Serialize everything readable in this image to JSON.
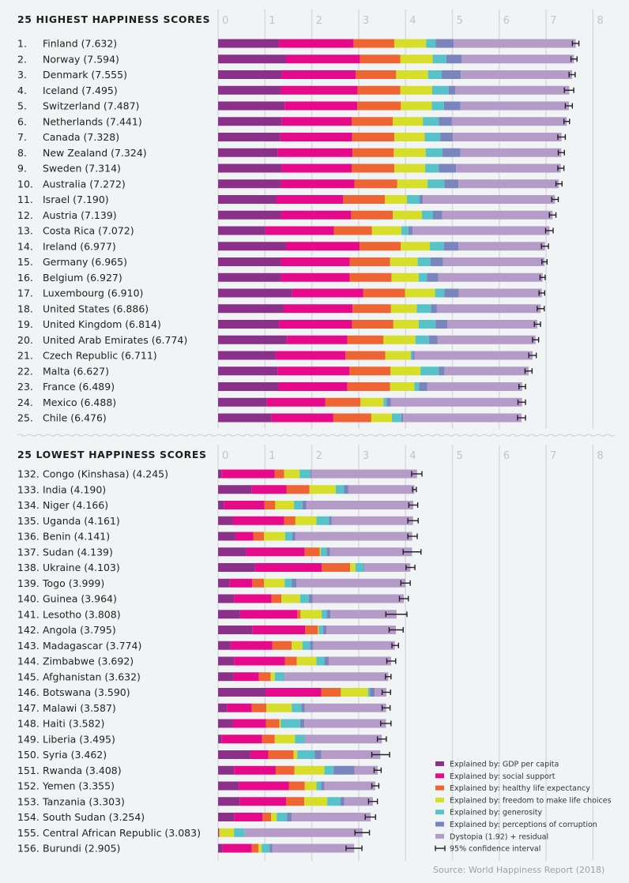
{
  "chart_data": {
    "type": "bar",
    "orientation": "horizontal",
    "stacked": true,
    "xlim": [
      0,
      8
    ],
    "x_ticks": [
      "0",
      "1",
      "2",
      "3",
      "4",
      "5",
      "6",
      "7",
      "8"
    ],
    "grid": true,
    "components": [
      {
        "key": "gdp",
        "name": "Explained by: GDP per capita",
        "color": "#8b3189"
      },
      {
        "key": "social",
        "name": "Explained by: social support",
        "color": "#e6098a"
      },
      {
        "key": "health",
        "name": "Explained by: healthy life expectancy",
        "color": "#ee6433"
      },
      {
        "key": "freedom",
        "name": "Explained by: freedom to make life choices",
        "color": "#d6de2a"
      },
      {
        "key": "generosity",
        "name": "Explained by: generosity",
        "color": "#58c2c9"
      },
      {
        "key": "corruption",
        "name": "Explained by: perceptions of corruption",
        "color": "#7a84bd"
      },
      {
        "key": "dystopia",
        "name": "Dystopia (1.92) + residual",
        "color": "#b49bc8"
      }
    ],
    "ci_legend": "95% confidence interval",
    "source": "Source: World Happiness Report (2018)",
    "sections": [
      {
        "title": "25 HIGHEST HAPPINESS SCORES",
        "rows": [
          {
            "rank": "1.",
            "country": "Finland (7.632)",
            "score": 7.632,
            "parts": [
              1.3,
              1.59,
              0.87,
              0.68,
              0.2,
              0.39
            ],
            "ci": [
              7.56,
              7.7
            ]
          },
          {
            "rank": "2.",
            "country": "Norway (7.594)",
            "score": 7.594,
            "parts": [
              1.45,
              1.58,
              0.86,
              0.69,
              0.29,
              0.33
            ],
            "ci": [
              7.53,
              7.66
            ]
          },
          {
            "rank": "3.",
            "country": "Denmark (7.555)",
            "score": 7.555,
            "parts": [
              1.35,
              1.59,
              0.86,
              0.68,
              0.29,
              0.41
            ],
            "ci": [
              7.49,
              7.62
            ]
          },
          {
            "rank": "4.",
            "country": "Iceland (7.495)",
            "score": 7.495,
            "parts": [
              1.34,
              1.64,
              0.91,
              0.68,
              0.35,
              0.14
            ],
            "ci": [
              7.39,
              7.59
            ]
          },
          {
            "rank": "5.",
            "country": "Switzerland (7.487)",
            "score": 7.487,
            "parts": [
              1.42,
              1.55,
              0.93,
              0.66,
              0.26,
              0.35
            ],
            "ci": [
              7.41,
              7.56
            ]
          },
          {
            "rank": "6.",
            "country": "Netherlands (7.441)",
            "score": 7.441,
            "parts": [
              1.36,
              1.49,
              0.88,
              0.64,
              0.34,
              0.28
            ],
            "ci": [
              7.38,
              7.5
            ]
          },
          {
            "rank": "7.",
            "country": "Canada (7.328)",
            "score": 7.328,
            "parts": [
              1.33,
              1.53,
              0.9,
              0.65,
              0.33,
              0.27
            ],
            "ci": [
              7.25,
              7.41
            ]
          },
          {
            "rank": "8.",
            "country": "New Zealand (7.324)",
            "score": 7.324,
            "parts": [
              1.27,
              1.6,
              0.88,
              0.68,
              0.36,
              0.38
            ],
            "ci": [
              7.26,
              7.39
            ]
          },
          {
            "rank": "9.",
            "country": "Sweden (7.314)",
            "score": 7.314,
            "parts": [
              1.35,
              1.5,
              0.91,
              0.66,
              0.29,
              0.37
            ],
            "ci": [
              7.25,
              7.38
            ]
          },
          {
            "rank": "10.",
            "country": "Australia (7.272)",
            "score": 7.272,
            "parts": [
              1.34,
              1.57,
              0.91,
              0.65,
              0.36,
              0.3
            ],
            "ci": [
              7.21,
              7.34
            ]
          },
          {
            "rank": "11.",
            "country": "Israel (7.190)",
            "score": 7.19,
            "parts": [
              1.24,
              1.43,
              0.89,
              0.47,
              0.27,
              0.07
            ],
            "ci": [
              7.12,
              7.26
            ]
          },
          {
            "rank": "12.",
            "country": "Austria (7.139)",
            "score": 7.139,
            "parts": [
              1.34,
              1.5,
              0.89,
              0.62,
              0.23,
              0.2
            ],
            "ci": [
              7.07,
              7.21
            ]
          },
          {
            "rank": "13.",
            "country": "Costa Rica (7.072)",
            "score": 7.072,
            "parts": [
              1.01,
              1.46,
              0.81,
              0.63,
              0.15,
              0.09
            ],
            "ci": [
              6.99,
              7.15
            ]
          },
          {
            "rank": "14.",
            "country": "Ireland (6.977)",
            "score": 6.977,
            "parts": [
              1.45,
              1.57,
              0.88,
              0.62,
              0.3,
              0.31
            ],
            "ci": [
              6.9,
              7.05
            ]
          },
          {
            "rank": "15.",
            "country": "Germany (6.965)",
            "score": 6.965,
            "parts": [
              1.34,
              1.47,
              0.86,
              0.59,
              0.27,
              0.27
            ],
            "ci": [
              6.91,
              7.02
            ]
          },
          {
            "rank": "16.",
            "country": "Belgium (6.927)",
            "score": 6.927,
            "parts": [
              1.34,
              1.47,
              0.89,
              0.58,
              0.18,
              0.24
            ],
            "ci": [
              6.87,
              6.98
            ]
          },
          {
            "rank": "17.",
            "country": "Luxembourg (6.910)",
            "score": 6.91,
            "parts": [
              1.58,
              1.52,
              0.89,
              0.64,
              0.2,
              0.31
            ],
            "ci": [
              6.85,
              6.97
            ]
          },
          {
            "rank": "18.",
            "country": "United States (6.886)",
            "score": 6.886,
            "parts": [
              1.4,
              1.47,
              0.82,
              0.55,
              0.3,
              0.13
            ],
            "ci": [
              6.81,
              6.96
            ]
          },
          {
            "rank": "19.",
            "country": "United Kingdom (6.814)",
            "score": 6.814,
            "parts": [
              1.3,
              1.56,
              0.88,
              0.54,
              0.36,
              0.25
            ],
            "ci": [
              6.75,
              6.88
            ]
          },
          {
            "rank": "20.",
            "country": "United Arab Emirates (6.774)",
            "score": 6.774,
            "parts": [
              1.47,
              1.29,
              0.77,
              0.68,
              0.29,
              0.18
            ],
            "ci": [
              6.71,
              6.84
            ]
          },
          {
            "rank": "21.",
            "country": "Czech Republic (6.711)",
            "score": 6.711,
            "parts": [
              1.23,
              1.49,
              0.85,
              0.54,
              0.04,
              0.04
            ],
            "ci": [
              6.63,
              6.79
            ]
          },
          {
            "rank": "22.",
            "country": "Malta (6.627)",
            "score": 6.627,
            "parts": [
              1.27,
              1.53,
              0.88,
              0.64,
              0.39,
              0.12
            ],
            "ci": [
              6.55,
              6.7
            ]
          },
          {
            "rank": "23.",
            "country": "France (6.489)",
            "score": 6.489,
            "parts": [
              1.29,
              1.47,
              0.91,
              0.52,
              0.1,
              0.17
            ],
            "ci": [
              6.42,
              6.56
            ]
          },
          {
            "rank": "24.",
            "country": "Mexico (6.488)",
            "score": 6.488,
            "parts": [
              1.04,
              1.25,
              0.75,
              0.49,
              0.07,
              0.09
            ],
            "ci": [
              6.4,
              6.56
            ]
          },
          {
            "rank": "25.",
            "country": "Chile (6.476)",
            "score": 6.476,
            "parts": [
              1.14,
              1.32,
              0.81,
              0.44,
              0.2,
              0.04
            ],
            "ci": [
              6.39,
              6.56
            ]
          }
        ]
      },
      {
        "title": "25 LOWEST HAPPINESS SCORES",
        "rows": [
          {
            "rank": "132.",
            "country": "Congo (Kinshasa) (4.245)",
            "score": 4.245,
            "parts": [
              0.07,
              1.14,
              0.2,
              0.33,
              0.23,
              0.02
            ],
            "ci": [
              4.13,
              4.35
            ]
          },
          {
            "rank": "133.",
            "country": "India (4.190)",
            "score": 4.19,
            "parts": [
              0.72,
              0.74,
              0.49,
              0.56,
              0.18,
              0.09
            ],
            "ci": [
              4.15,
              4.23
            ]
          },
          {
            "rank": "134.",
            "country": "Niger (4.166)",
            "score": 4.166,
            "parts": [
              0.13,
              0.86,
              0.23,
              0.4,
              0.18,
              0.08
            ],
            "ci": [
              4.07,
              4.26
            ]
          },
          {
            "rank": "135.",
            "country": "Uganda (4.161)",
            "score": 4.161,
            "parts": [
              0.32,
              1.09,
              0.24,
              0.45,
              0.27,
              0.05
            ],
            "ci": [
              4.05,
              4.27
            ]
          },
          {
            "rank": "136.",
            "country": "Benin (4.141)",
            "score": 4.141,
            "parts": [
              0.37,
              0.38,
              0.23,
              0.45,
              0.15,
              0.07
            ],
            "ci": [
              4.05,
              4.25
            ]
          },
          {
            "rank": "137.",
            "country": "Sudan (4.139)",
            "score": 4.139,
            "parts": [
              0.6,
              1.25,
              0.32,
              0.02,
              0.13,
              0.07
            ],
            "ci": [
              3.95,
              4.33
            ]
          },
          {
            "rank": "138.",
            "country": "Ukraine (4.103)",
            "score": 4.103,
            "parts": [
              0.79,
              1.42,
              0.61,
              0.11,
              0.18,
              0.01
            ],
            "ci": [
              4.01,
              4.2
            ]
          },
          {
            "rank": "139.",
            "country": "Togo (3.999)",
            "score": 3.999,
            "parts": [
              0.25,
              0.48,
              0.25,
              0.44,
              0.15,
              0.1
            ],
            "ci": [
              3.9,
              4.1
            ]
          },
          {
            "rank": "140.",
            "country": "Guinea (3.964)",
            "score": 3.964,
            "parts": [
              0.34,
              0.8,
              0.21,
              0.4,
              0.19,
              0.08
            ],
            "ci": [
              3.87,
              4.06
            ]
          },
          {
            "rank": "141.",
            "country": "Lesotho (3.808)",
            "score": 3.808,
            "parts": [
              0.47,
              1.22,
              0.07,
              0.45,
              0.11,
              0.08
            ],
            "ci": [
              3.58,
              4.03
            ]
          },
          {
            "rank": "142.",
            "country": "Angola (3.795)",
            "score": 3.795,
            "parts": [
              0.73,
              1.13,
              0.27,
              0.02,
              0.09,
              0.07
            ],
            "ci": [
              3.65,
              3.95
            ]
          },
          {
            "rank": "143.",
            "country": "Madagascar (3.774)",
            "score": 3.774,
            "parts": [
              0.26,
              0.9,
              0.41,
              0.23,
              0.16,
              0.07
            ],
            "ci": [
              3.71,
              3.85
            ]
          },
          {
            "rank": "144.",
            "country": "Zimbabwe (3.692)",
            "score": 3.692,
            "parts": [
              0.34,
              1.09,
              0.25,
              0.42,
              0.17,
              0.09
            ],
            "ci": [
              3.6,
              3.79
            ]
          },
          {
            "rank": "145.",
            "country": "Afghanistan (3.632)",
            "score": 3.632,
            "parts": [
              0.33,
              0.54,
              0.25,
              0.09,
              0.2,
              0.01
            ],
            "ci": [
              3.57,
              3.69
            ]
          },
          {
            "rank": "146.",
            "country": "Botswana (3.590)",
            "score": 3.59,
            "parts": [
              1.02,
              1.18,
              0.42,
              0.58,
              0.04,
              0.1
            ],
            "ci": [
              3.5,
              3.68
            ]
          },
          {
            "rank": "147.",
            "country": "Malawi (3.587)",
            "score": 3.587,
            "parts": [
              0.19,
              0.53,
              0.31,
              0.54,
              0.21,
              0.07
            ],
            "ci": [
              3.5,
              3.67
            ]
          },
          {
            "rank": "148.",
            "country": "Haiti (3.582)",
            "score": 3.582,
            "parts": [
              0.32,
              0.7,
              0.29,
              0.03,
              0.41,
              0.09
            ],
            "ci": [
              3.47,
              3.69
            ]
          },
          {
            "rank": "149.",
            "country": "Liberia (3.495)",
            "score": 3.495,
            "parts": [
              0.07,
              0.87,
              0.27,
              0.43,
              0.21,
              0.01
            ],
            "ci": [
              3.4,
              3.59
            ]
          },
          {
            "rank": "150.",
            "country": "Syria (3.462)",
            "score": 3.462,
            "parts": [
              0.69,
              0.38,
              0.54,
              0.08,
              0.37,
              0.14
            ],
            "ci": [
              3.28,
              3.66
            ]
          },
          {
            "rank": "151.",
            "country": "Rwanda (3.408)",
            "score": 3.408,
            "parts": [
              0.34,
              0.89,
              0.4,
              0.64,
              0.2,
              0.44
            ],
            "ci": [
              3.33,
              3.48
            ]
          },
          {
            "rank": "152.",
            "country": "Yemen (3.355)",
            "score": 3.355,
            "parts": [
              0.44,
              1.07,
              0.34,
              0.25,
              0.1,
              0.07
            ],
            "ci": [
              3.28,
              3.43
            ]
          },
          {
            "rank": "153.",
            "country": "Tanzania (3.303)",
            "score": 3.303,
            "parts": [
              0.46,
              0.99,
              0.39,
              0.49,
              0.28,
              0.08
            ],
            "ci": [
              3.21,
              3.4
            ]
          },
          {
            "rank": "154.",
            "country": "South Sudan (3.254)",
            "score": 3.254,
            "parts": [
              0.34,
              0.61,
              0.18,
              0.12,
              0.22,
              0.1
            ],
            "ci": [
              3.14,
              3.36
            ]
          },
          {
            "rank": "155.",
            "country": "Central African Republic (3.083)",
            "score": 3.083,
            "parts": [
              0.02,
              0.0,
              0.01,
              0.31,
              0.23,
              0.0
            ],
            "ci": [
              2.92,
              3.23
            ]
          },
          {
            "rank": "156.",
            "country": "Burundi (2.905)",
            "score": 2.905,
            "parts": [
              0.09,
              0.63,
              0.14,
              0.07,
              0.17,
              0.06
            ],
            "ci": [
              2.73,
              3.07
            ]
          }
        ]
      }
    ]
  }
}
